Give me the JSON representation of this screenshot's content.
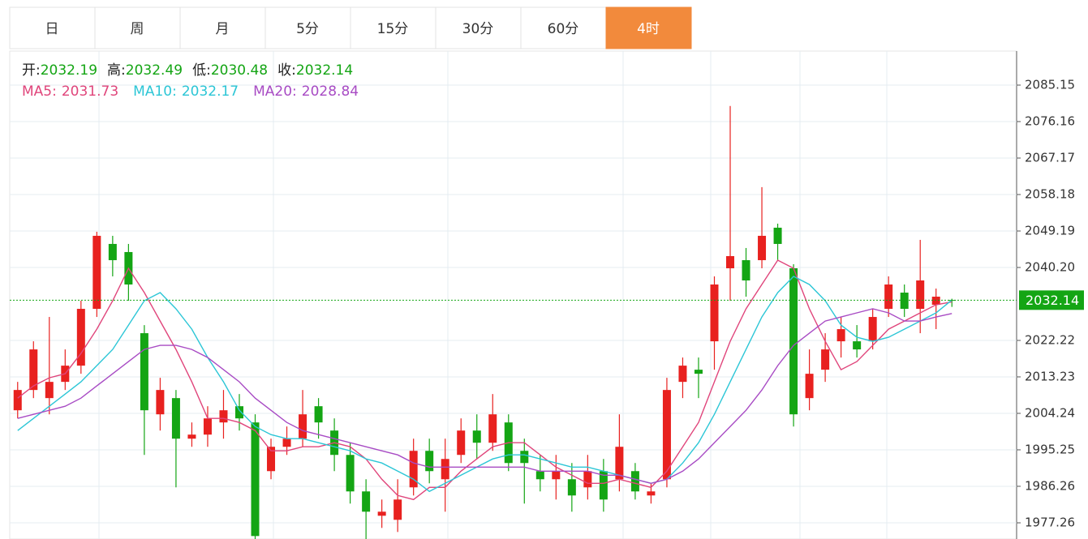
{
  "chart_data": {
    "type": "candlestick",
    "tabs": [
      "日",
      "周",
      "月",
      "5分",
      "15分",
      "30分",
      "60分",
      "4时"
    ],
    "active_tab": 7,
    "info_labels": [
      "开:",
      "高:",
      "低:",
      "收:"
    ],
    "open": [
      2005,
      2010,
      2008,
      2012,
      2016,
      2030,
      2046,
      2044,
      2024,
      2004,
      2008,
      1998,
      1999,
      2002,
      2006,
      2002,
      1990,
      1996,
      1998,
      2006,
      2000,
      1994,
      1985,
      1979,
      1978,
      1986,
      1995,
      1988,
      1994,
      2000,
      1997,
      2002,
      1995,
      1990,
      1988,
      1988,
      1986,
      1990,
      1988,
      1990,
      1984,
      1988,
      2012,
      2015,
      2022,
      2040,
      2042,
      2042,
      2050,
      2040,
      2008,
      2015,
      2022,
      2022,
      2022,
      2030,
      2034,
      2030,
      2031,
      2032.19
    ],
    "high": [
      2012,
      2022,
      2028,
      2020,
      2032,
      2049,
      2048,
      2046,
      2026,
      2013,
      2010,
      2002,
      2006,
      2010,
      2009,
      2004,
      1998,
      2001,
      2010,
      2008,
      2003,
      1997,
      1988,
      1983,
      1988,
      1998,
      1998,
      1998,
      2003,
      2004,
      2009,
      2004,
      1998,
      1994,
      1994,
      1992,
      1994,
      1993,
      2004,
      1992,
      1987,
      2013,
      2018,
      2018,
      2038,
      2080,
      2045,
      2060,
      2051,
      2041,
      2020,
      2024,
      2028,
      2026,
      2030,
      2038,
      2036,
      2047,
      2035,
      2032.49
    ],
    "low": [
      2003,
      2008,
      2004,
      2010,
      2014,
      2028,
      2038,
      2032,
      1994,
      2000,
      1986,
      1996,
      1996,
      1998,
      2000,
      1972,
      1988,
      1994,
      1996,
      1998,
      1990,
      1982,
      1973,
      1976,
      1975,
      1984,
      1987,
      1980,
      1992,
      1993,
      1995,
      1990,
      1982,
      1985,
      1983,
      1980,
      1983,
      1980,
      1985,
      1983,
      1982,
      1986,
      2008,
      2008,
      2015,
      2032,
      2033,
      2040,
      2042,
      2001,
      2005,
      2012,
      2018,
      2018,
      2020,
      2028,
      2028,
      2024,
      2025,
      2030.48
    ],
    "close": [
      2010,
      2020,
      2012,
      2016,
      2030,
      2048,
      2042,
      2036,
      2005,
      2010,
      1998,
      1999,
      2003,
      2005,
      2003,
      1974,
      1996,
      1998,
      2004,
      2002,
      1994,
      1985,
      1980,
      1980,
      1983,
      1995,
      1990,
      1993,
      2000,
      1997,
      2004,
      1992,
      1992,
      1988,
      1990,
      1984,
      1990,
      1983,
      1996,
      1985,
      1985,
      2010,
      2016,
      2014,
      2036,
      2043,
      2037,
      2048,
      2046,
      2004,
      2014,
      2020,
      2025,
      2020,
      2028,
      2036,
      2030,
      2037,
      2033,
      2032.14
    ],
    "up_color": "#e8211f",
    "down_color": "#14a514",
    "series": [
      {
        "label": "MA5:",
        "color": "#e0457b",
        "values": [
          2008,
          2011,
          2013,
          2014,
          2019,
          2025,
          2032,
          2040,
          2034,
          2027,
          2020,
          2012,
          2003,
          2003,
          2002,
          2000,
          1995,
          1995,
          1996,
          1996,
          1997,
          1996,
          1993,
          1988,
          1984,
          1983,
          1986,
          1986,
          1990,
          1993,
          1996,
          1997,
          1997,
          1994,
          1991,
          1989,
          1987,
          1987,
          1988,
          1987,
          1986,
          1990,
          1996,
          2002,
          2012,
          2022,
          2030,
          2036,
          2042,
          2040,
          2030,
          2022,
          2015,
          2017,
          2021,
          2025,
          2027,
          2029,
          2031,
          2031.73
        ]
      },
      {
        "label": "MA10:",
        "color": "#2cc6d6",
        "values": [
          2000,
          2003,
          2006,
          2009,
          2012,
          2016,
          2020,
          2026,
          2032,
          2034,
          2030,
          2025,
          2018,
          2012,
          2005,
          2001,
          1999,
          1998,
          1998,
          1997,
          1996,
          1995,
          1993,
          1992,
          1990,
          1988,
          1985,
          1987,
          1989,
          1991,
          1993,
          1994,
          1994,
          1993,
          1992,
          1991,
          1991,
          1990,
          1989,
          1988,
          1987,
          1988,
          1992,
          1997,
          2004,
          2012,
          2020,
          2028,
          2034,
          2038,
          2036,
          2032,
          2026,
          2023,
          2022,
          2023,
          2025,
          2027,
          2029,
          2032.17
        ]
      },
      {
        "label": "MA20:",
        "color": "#a84bc4",
        "values": [
          2003,
          2004,
          2005,
          2006,
          2008,
          2011,
          2014,
          2017,
          2020,
          2021,
          2021,
          2020,
          2018,
          2015,
          2012,
          2008,
          2005,
          2002,
          2000,
          1999,
          1998,
          1997,
          1996,
          1995,
          1994,
          1992,
          1991,
          1991,
          1991,
          1991,
          1991,
          1991,
          1991,
          1990,
          1990,
          1990,
          1990,
          1989,
          1989,
          1988,
          1987,
          1988,
          1990,
          1993,
          1997,
          2001,
          2005,
          2010,
          2016,
          2021,
          2024,
          2027,
          2028,
          2029,
          2030,
          2029,
          2027,
          2027,
          2028,
          2028.84
        ]
      }
    ],
    "ylim": [
      1973.27,
      2093.14
    ],
    "yticks": [
      2085.15,
      2076.16,
      2067.17,
      2058.18,
      2049.19,
      {
        "value": 2040.2,
        "label": "2040.20"
      },
      2022.22,
      2013.23,
      2004.24,
      1995.25,
      1986.26,
      1977.26
    ],
    "grid": true
  }
}
